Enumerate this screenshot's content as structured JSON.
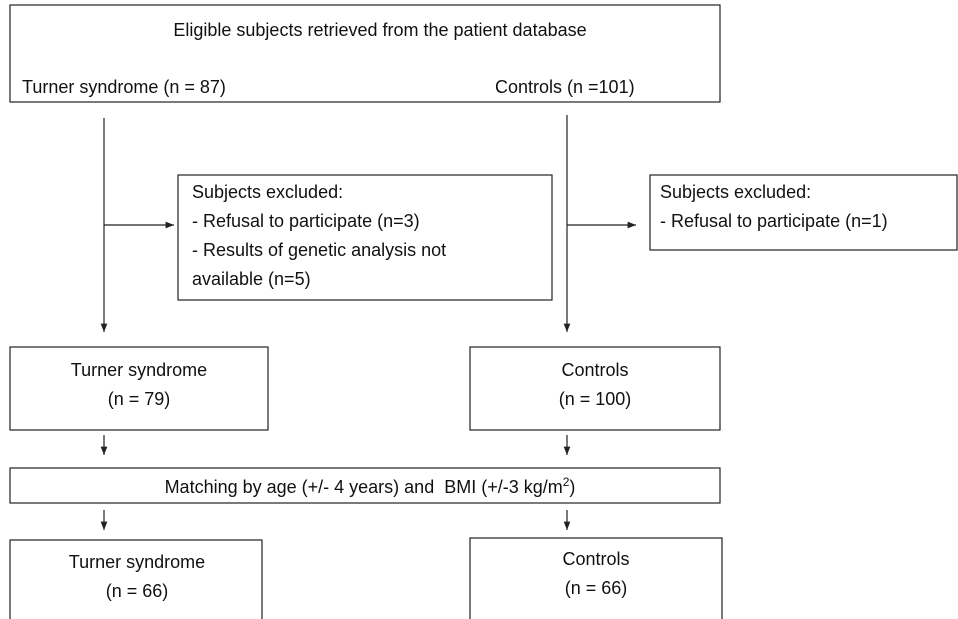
{
  "top": {
    "title": "Eligible subjects retrieved from the patient database",
    "left": "Turner syndrome (n = 87)",
    "right": "Controls (n =101)"
  },
  "excluded_left": {
    "lines": [
      "Subjects excluded:",
      "- Refusal to participate (n=3)",
      "- Results of genetic analysis not",
      "available (n=5)"
    ]
  },
  "excluded_right": {
    "lines": [
      "Subjects excluded:",
      "- Refusal to participate (n=1)"
    ]
  },
  "turner_1": {
    "lines": [
      "Turner syndrome",
      "(n = 79)"
    ]
  },
  "controls_1": {
    "lines": [
      "Controls",
      "(n = 100)"
    ]
  },
  "matching": {
    "parts": [
      "Matching by age (+/- 4 years) and  BMI (+/-3 kg/m",
      "2",
      ")"
    ]
  },
  "turner_2": {
    "lines": [
      "Turner syndrome",
      "(n = 66)"
    ]
  },
  "controls_2": {
    "lines": [
      "Controls",
      "(n = 66)"
    ]
  }
}
